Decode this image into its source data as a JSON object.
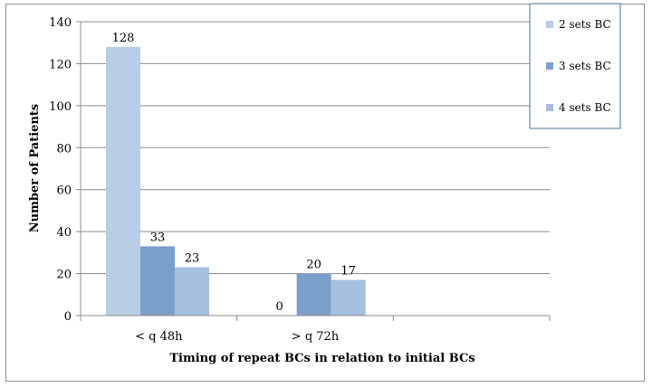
{
  "chart_data": {
    "type": "bar",
    "categories": [
      "< q 48h",
      "> q 72h"
    ],
    "series": [
      {
        "name": "2 sets BC",
        "values": [
          128,
          0
        ],
        "color": "#b9cde4"
      },
      {
        "name": "3 sets BC",
        "values": [
          33,
          20
        ],
        "color": "#7b9fcb"
      },
      {
        "name": "4 sets BC",
        "values": [
          23,
          17
        ],
        "color": "#a6c0e0"
      }
    ],
    "title": "",
    "xlabel": "Timing of repeat BCs in relation to initial BCs",
    "ylabel": "Number of Patients",
    "ylim": [
      0,
      140
    ],
    "yticks": [
      0,
      20,
      40,
      60,
      80,
      100,
      120,
      140
    ],
    "grid": true,
    "legend_position": "top-right"
  }
}
